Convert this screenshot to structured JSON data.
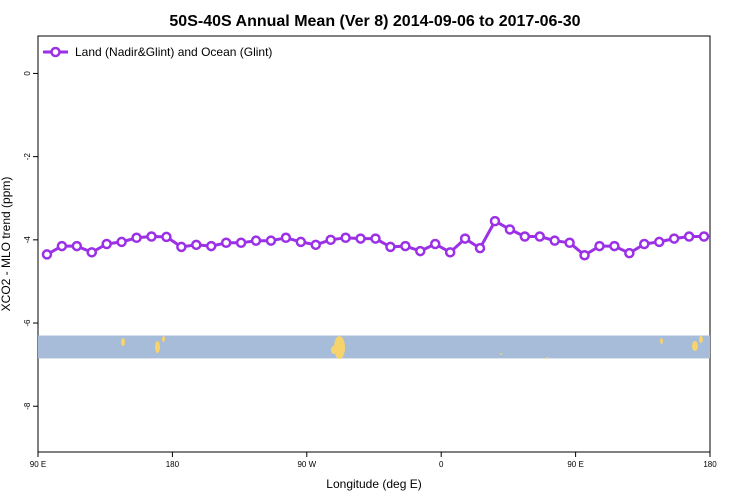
{
  "chart_data": {
    "type": "line",
    "title": "50S-40S Annual Mean (Ver 8)   2014-09-06 to 2017-06-30",
    "xlabel": "Longitude (deg E)",
    "ylabel": "XCO2 - MLO trend (ppm)",
    "x_ticks": [
      {
        "value": 90,
        "label": "90 E"
      },
      {
        "value": 180,
        "label": "180"
      },
      {
        "value": 270,
        "label": "90 W"
      },
      {
        "value": 360,
        "label": "0"
      },
      {
        "value": 450,
        "label": "90 E"
      },
      {
        "value": 540,
        "label": "180"
      }
    ],
    "y_ticks": [
      0,
      -2,
      -4,
      -6,
      -8
    ],
    "xlim": [
      90,
      540
    ],
    "ylim": [
      -9.1,
      0.9
    ],
    "legend_position": "top-left",
    "colors": {
      "series": "#9b30e6",
      "ocean": "#a7bcd9",
      "land": "#f7d36b"
    },
    "land_band": {
      "y_top": -6.3,
      "y_bottom": -6.85
    },
    "series": [
      {
        "name": "Land (Nadir&Glint) and Ocean (Glint)",
        "x": [
          96,
          106,
          116,
          126,
          136,
          146,
          156,
          166,
          176,
          186,
          196,
          206,
          216,
          226,
          236,
          246,
          256,
          266,
          276,
          286,
          296,
          306,
          316,
          326,
          336,
          346,
          356,
          366,
          376,
          386,
          396,
          406,
          416,
          426,
          436,
          446,
          456,
          466,
          476,
          486,
          496,
          506,
          516,
          526,
          536
        ],
        "y": [
          -4.35,
          -4.15,
          -4.15,
          -4.3,
          -4.1,
          -4.05,
          -3.95,
          -3.92,
          -3.93,
          -4.17,
          -4.12,
          -4.15,
          -4.07,
          -4.07,
          -4.02,
          -4.02,
          -3.95,
          -4.05,
          -4.12,
          -4.0,
          -3.95,
          -3.97,
          -3.97,
          -4.17,
          -4.15,
          -4.27,
          -4.1,
          -4.3,
          -3.97,
          -4.2,
          -3.55,
          -3.75,
          -3.92,
          -3.92,
          -4.02,
          -4.07,
          -4.37,
          -4.15,
          -4.15,
          -4.32,
          -4.1,
          -4.05,
          -3.97,
          -3.92,
          -3.92
        ]
      }
    ]
  }
}
